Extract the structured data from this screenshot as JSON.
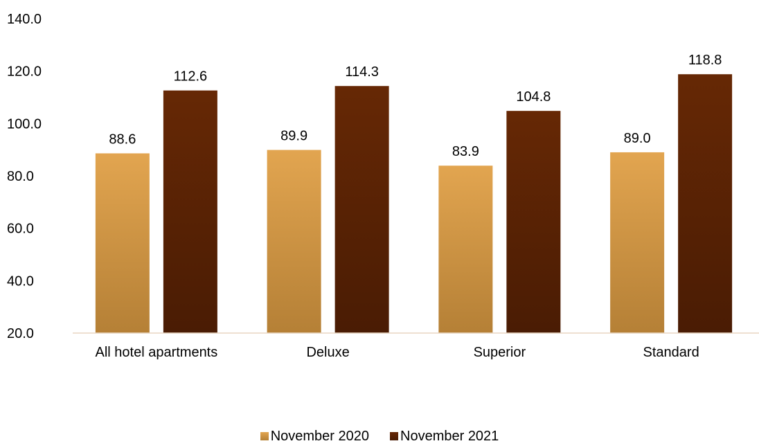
{
  "chart_data": {
    "type": "bar",
    "categories": [
      "All hotel apartments",
      "Deluxe",
      "Superior",
      "Standard"
    ],
    "series": [
      {
        "name": "November 2020",
        "values": [
          88.6,
          89.9,
          83.9,
          89.0
        ],
        "value_labels": [
          "88.6",
          "89.9",
          "83.9",
          "89.0"
        ],
        "color_top": "#e2a550",
        "color_bottom": "#b58036"
      },
      {
        "name": "November 2021",
        "values": [
          112.6,
          114.3,
          104.8,
          118.8
        ],
        "value_labels": [
          "112.6",
          "114.3",
          "104.8",
          "118.8"
        ],
        "color_top": "#662805",
        "color_bottom": "#4a1c04"
      }
    ],
    "ylim": [
      20,
      140
    ],
    "yticks": [
      "20.0",
      "40.0",
      "60.0",
      "80.0",
      "100.0",
      "120.0",
      "140.0"
    ],
    "ytick_values": [
      20,
      40,
      60,
      80,
      100,
      120,
      140
    ],
    "grid": false,
    "legend_position": "bottom"
  }
}
